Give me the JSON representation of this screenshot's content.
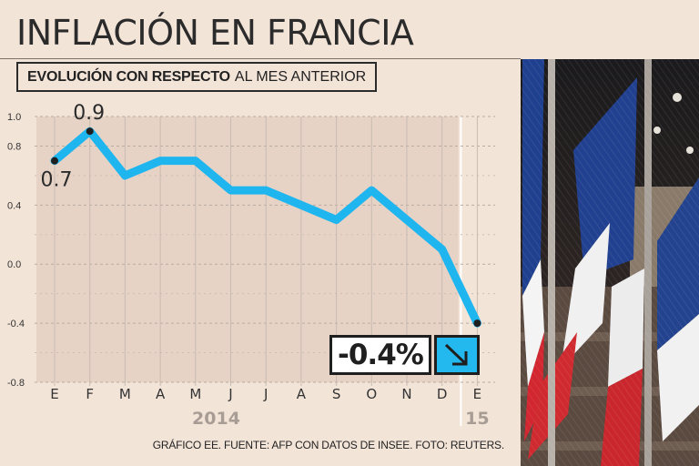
{
  "header": {
    "title": "INFLACIÓN EN FRANCIA",
    "subtitle_bold": "EVOLUCIÓN CON RESPECTO",
    "subtitle_rest": "AL MES ANTERIOR"
  },
  "callout": {
    "value": "-0.4%",
    "icon": "arrow-down-right-icon"
  },
  "footer": {
    "source": "GRÁFICO EE. FUENTE: AFP CON DATOS DE INSEE. FOTO: REUTERS."
  },
  "photo": {
    "subject": "french-flags-photo"
  },
  "colors": {
    "line": "#1fb6ef",
    "background": "#f3e4d8",
    "shade": "#e6d3c6",
    "text": "#2b2b2b"
  },
  "chart_data": {
    "type": "line",
    "title": "INFLACIÓN EN FRANCIA",
    "subtitle": "EVOLUCIÓN CON RESPECTO AL MES ANTERIOR",
    "categories": [
      "E",
      "F",
      "M",
      "A",
      "M",
      "J",
      "J",
      "A",
      "S",
      "O",
      "N",
      "D",
      "E"
    ],
    "year_labels": [
      {
        "label": "2014",
        "from_index": 0,
        "to_index": 11
      },
      {
        "label": "15",
        "from_index": 12,
        "to_index": 12
      }
    ],
    "series": [
      {
        "values": [
          0.7,
          0.9,
          0.6,
          0.7,
          0.7,
          0.5,
          0.5,
          0.4,
          0.3,
          0.5,
          0.3,
          0.1,
          -0.4
        ]
      }
    ],
    "data_labels": [
      {
        "index": 0,
        "text": "0.7"
      },
      {
        "index": 1,
        "text": "0.9"
      },
      {
        "index": 12,
        "text": "-0.4%"
      }
    ],
    "y_ticks": [
      "1.0",
      "0.8",
      "0.4",
      "0.0",
      "-0.4",
      "-0.8"
    ],
    "y_tick_values": [
      1.0,
      0.8,
      0.4,
      0.0,
      -0.4,
      -0.8
    ],
    "ylim": [
      -0.8,
      1.0
    ],
    "xlabel": "",
    "ylabel": "",
    "grid": true
  }
}
